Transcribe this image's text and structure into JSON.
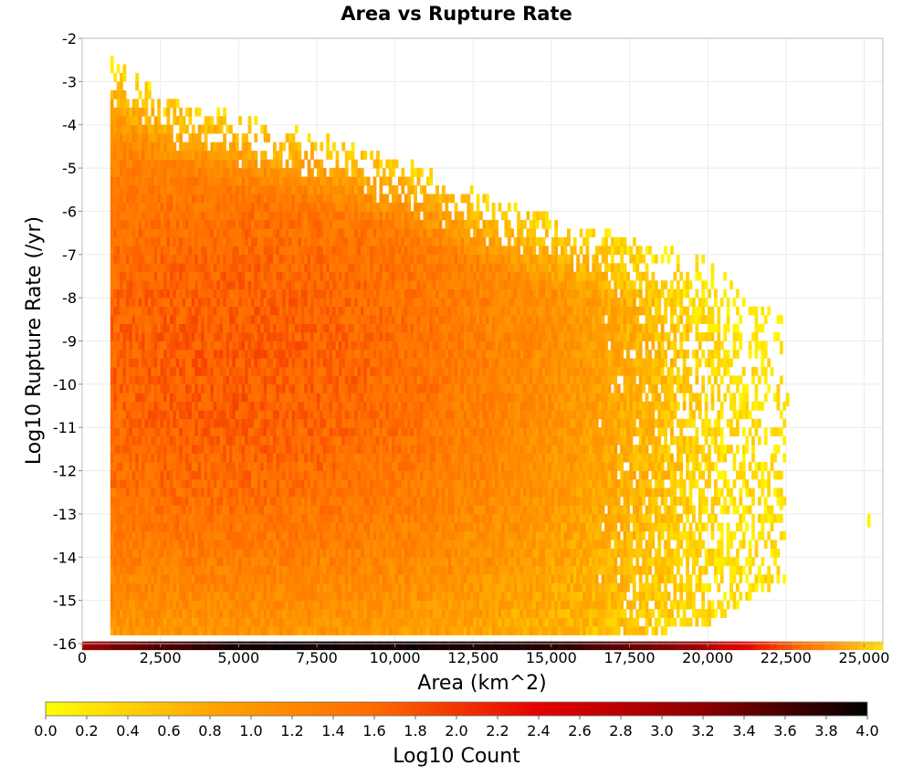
{
  "chart_data": {
    "type": "heatmap",
    "title": "Area vs Rupture Rate",
    "xlabel": "Area (km^2)",
    "ylabel": "Log10 Rupture Rate (/yr)",
    "colorbar_label": "Log10 Count",
    "xlim": [
      0,
      25600
    ],
    "ylim": [
      -16,
      -2
    ],
    "x_ticks": [
      "0",
      "2,500",
      "5,000",
      "7,500",
      "10,000",
      "12,500",
      "15,000",
      "17,500",
      "20,000",
      "22,500",
      "25,000"
    ],
    "x_tick_values": [
      0,
      2500,
      5000,
      7500,
      10000,
      12500,
      15000,
      17500,
      20000,
      22500,
      25000
    ],
    "y_ticks": [
      "-2",
      "-3",
      "-4",
      "-5",
      "-6",
      "-7",
      "-8",
      "-9",
      "-10",
      "-11",
      "-12",
      "-13",
      "-14",
      "-15",
      "-16"
    ],
    "y_tick_values": [
      -2,
      -3,
      -4,
      -5,
      -6,
      -7,
      -8,
      -9,
      -10,
      -11,
      -12,
      -13,
      -14,
      -15,
      -16
    ],
    "colorbar_ticks": [
      "0.0",
      "0.2",
      "0.4",
      "0.6",
      "0.8",
      "1.0",
      "1.2",
      "1.4",
      "1.6",
      "1.8",
      "2.0",
      "2.2",
      "2.4",
      "2.6",
      "2.8",
      "3.0",
      "3.2",
      "3.4",
      "3.6",
      "3.8",
      "4.0"
    ],
    "colorbar_range": [
      0,
      4
    ],
    "colormap": [
      "#ffff00",
      "#ffa500",
      "#ff6a00",
      "#e60000",
      "#8c0000",
      "#000000"
    ],
    "grid": true,
    "bin_width_x": 100,
    "bin_height_y": 0.2,
    "data_x_range": [
      900,
      22500
    ],
    "floor_row": {
      "y": -16,
      "x_range": [
        0,
        25600
      ],
      "anchor_x": [
        0,
        1000,
        5000,
        10000,
        15000,
        19500,
        22500,
        25600
      ],
      "anchor_value": [
        3.0,
        3.3,
        3.9,
        3.9,
        3.8,
        3.1,
        1.8,
        0.2
      ]
    },
    "upper_boundary": {
      "area": [
        900,
        1000,
        2500,
        5000,
        7500,
        10000,
        12500,
        15000,
        17500,
        20000,
        22500
      ],
      "log10_rate": [
        -2.4,
        -2.6,
        -3.3,
        -3.9,
        -4.3,
        -4.8,
        -5.6,
        -6.2,
        -6.6,
        -7.2,
        -8.5
      ]
    },
    "lower_boundary": {
      "area": [
        900,
        5000,
        10000,
        15000,
        17500,
        20000,
        22500
      ],
      "log10_rate": [
        -15.9,
        -15.9,
        -15.9,
        -15.9,
        -15.8,
        -15.6,
        -14.5
      ]
    },
    "density_peak": {
      "area": 4500,
      "log10_rate": -9.5,
      "log10_count": 1.7
    },
    "outliers": [
      {
        "area": 25100,
        "log10_rate": -13.1,
        "log10_count": 0.1
      },
      {
        "area": 22300,
        "log10_rate": -12.7,
        "log10_count": 0.2
      },
      {
        "area": 22500,
        "log10_rate": -10.3,
        "log10_count": 0.3
      },
      {
        "area": 22300,
        "log10_rate": -9.1,
        "log10_count": 0.3
      }
    ]
  }
}
